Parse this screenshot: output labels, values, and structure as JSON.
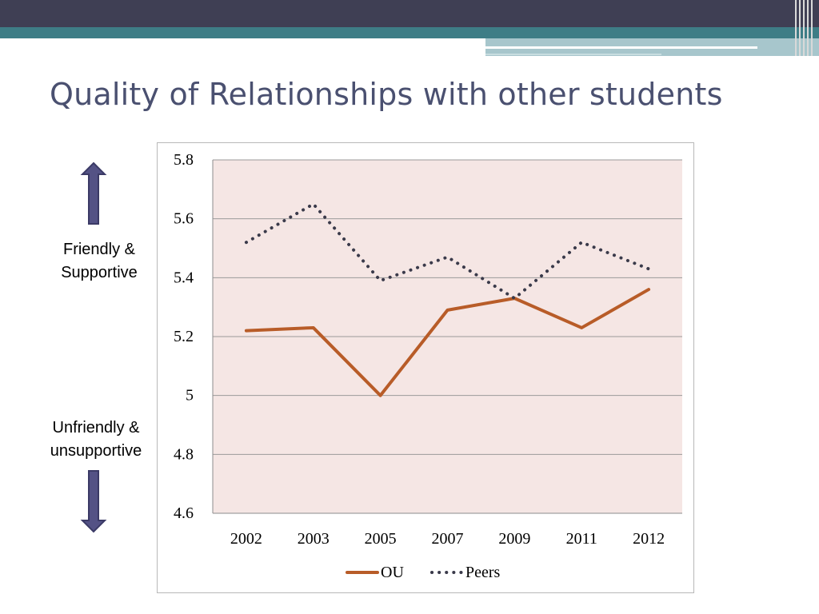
{
  "slide": {
    "title": "Quality of Relationships with other students"
  },
  "labels": {
    "top_line1": "Friendly &",
    "top_line2": "Supportive",
    "bottom_line1": "Unfriendly &",
    "bottom_line2": "unsupportive"
  },
  "colors": {
    "ou_line": "#b85c28",
    "peers_line": "#3a3a4a",
    "plot_background": "#f5e6e4",
    "arrow_fill": "#545285",
    "gridline": "#9a9a9a"
  },
  "chart_data": {
    "type": "line",
    "categories": [
      "2002",
      "2003",
      "2005",
      "2007",
      "2009",
      "2011",
      "2012"
    ],
    "series": [
      {
        "name": "OU",
        "values": [
          5.22,
          5.23,
          5.0,
          5.29,
          5.33,
          5.23,
          5.36
        ],
        "style": "solid"
      },
      {
        "name": "Peers",
        "values": [
          5.52,
          5.65,
          5.39,
          5.47,
          5.33,
          5.52,
          5.43
        ],
        "style": "dotted"
      }
    ],
    "ylim": [
      4.6,
      5.8
    ],
    "yticks": [
      "4.6",
      "4.8",
      "5",
      "5.2",
      "5.4",
      "5.6",
      "5.8"
    ],
    "title": "",
    "xlabel": "",
    "ylabel": "",
    "grid": true,
    "legend": "bottom"
  }
}
